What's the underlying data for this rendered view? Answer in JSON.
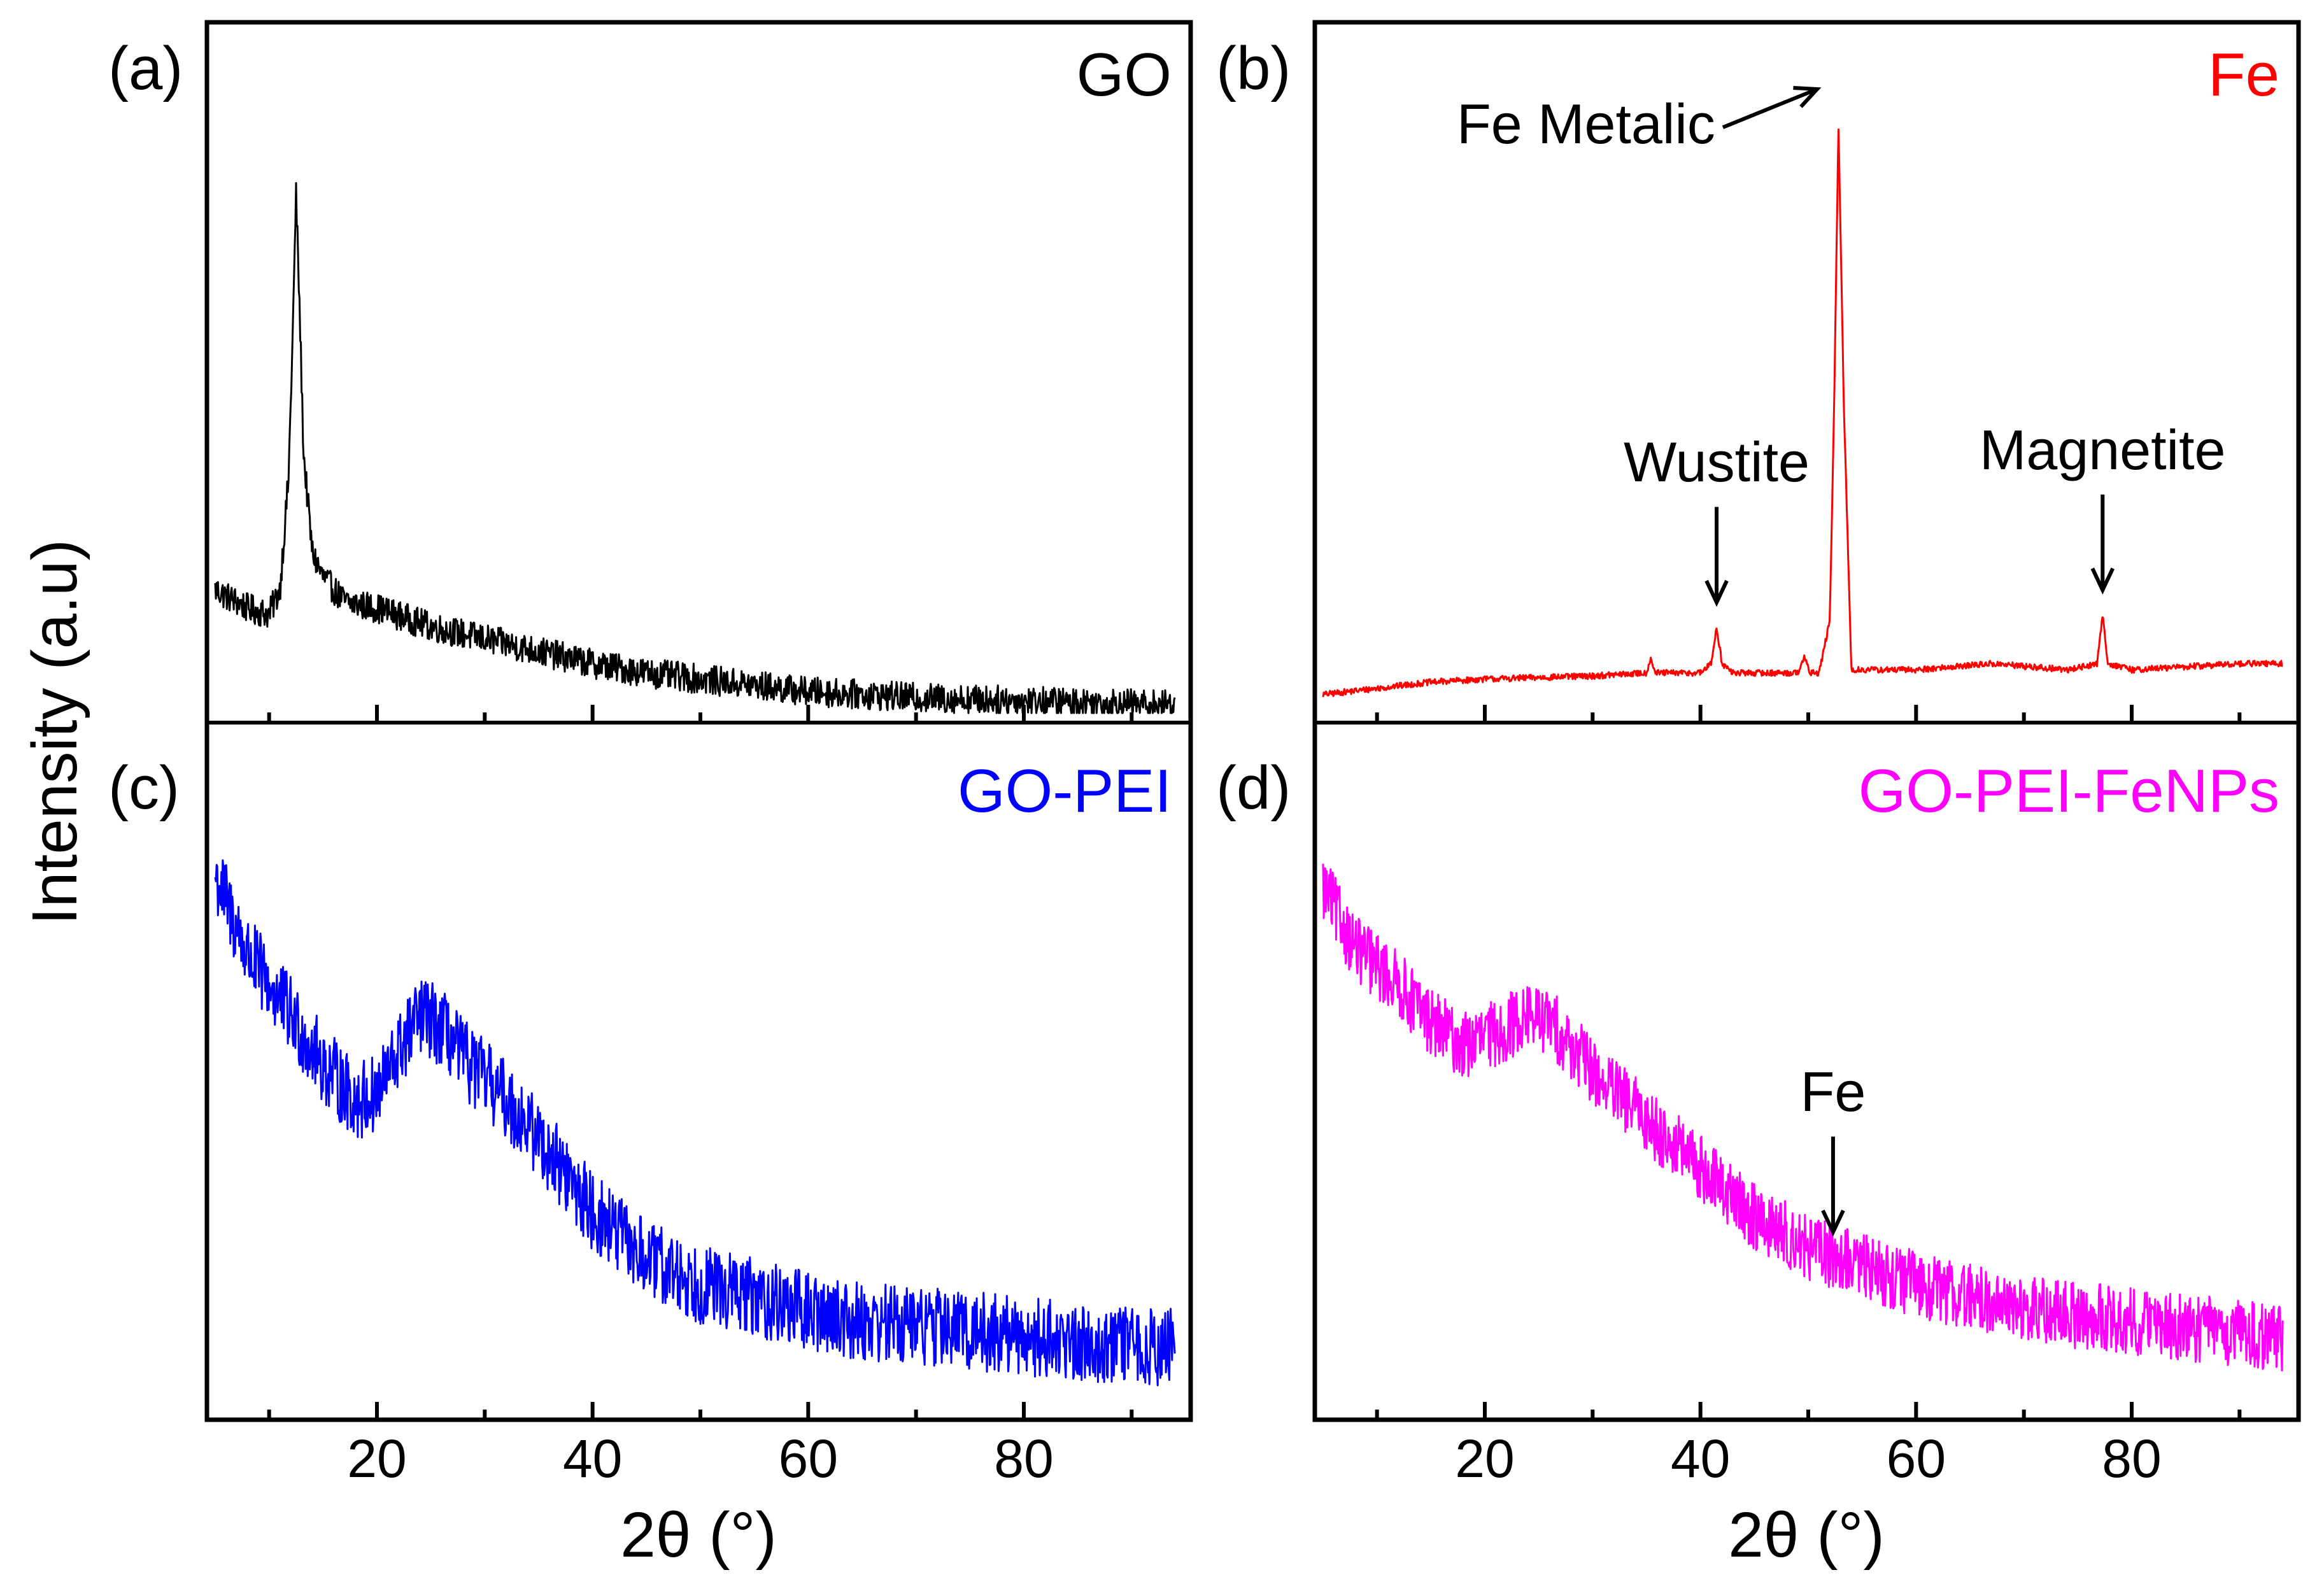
{
  "chart_data": {
    "type": "line",
    "ylabel": "Intensity (a.u)",
    "xlabel": "2θ (°)",
    "xlim": [
      5,
      95
    ],
    "xticks": [
      20,
      40,
      60,
      80
    ],
    "xtick_labels": [
      "20",
      "40",
      "60",
      "80"
    ],
    "ylim": [
      0,
      100
    ],
    "panels": [
      {
        "id": "(a)",
        "sample": "GO",
        "color": "#000000",
        "noise": 2.4,
        "x": [
          5,
          6,
          8,
          10,
          11,
          11.8,
          12.2,
          12.5,
          12.8,
          13.2,
          14,
          15,
          17,
          20,
          25,
          30,
          35,
          40,
          45,
          50,
          55,
          60,
          70,
          80,
          90,
          94
        ],
        "y": [
          20,
          19,
          17,
          16,
          20,
          38,
          62,
          84,
          67,
          42,
          26,
          22,
          18,
          17,
          14,
          12,
          10,
          8,
          6.5,
          5.5,
          4.5,
          3.5,
          2.5,
          2,
          1.5,
          1.3
        ],
        "annotations": []
      },
      {
        "id": "(b)",
        "sample": "Fe",
        "color": "#ff0000",
        "noise": 0.5,
        "x": [
          5,
          10,
          15,
          20,
          30,
          35,
          35.4,
          35.8,
          40,
          41,
          41.5,
          42,
          43,
          49,
          49.6,
          50.2,
          51,
          52,
          52.4,
          52.8,
          53.3,
          54,
          60,
          67,
          74,
          76.8,
          77.3,
          77.8,
          80,
          90,
          94
        ],
        "y": [
          3,
          4,
          5,
          5.5,
          6,
          6.5,
          9,
          6.5,
          6.5,
          8,
          14,
          8,
          6.5,
          6.5,
          9,
          6.5,
          6.5,
          15,
          50,
          95,
          50,
          7,
          7,
          8,
          7,
          8,
          16,
          8,
          7,
          8,
          8
        ],
        "annotations": [
          {
            "text": "Fe Metalic",
            "x": 52.3,
            "type": "diagonal"
          },
          {
            "text": "Wustite",
            "x": 41.5,
            "type": "down"
          },
          {
            "text": "Magnetite",
            "x": 77.3,
            "type": "down"
          }
        ]
      },
      {
        "id": "(c)",
        "sample": "GO-PEI",
        "color": "#0000ff",
        "noise": 6.5,
        "x": [
          5,
          8,
          12,
          15,
          18,
          20,
          22,
          24,
          26,
          28,
          31,
          35,
          40,
          45,
          50,
          55,
          60,
          65,
          70,
          75,
          80,
          85,
          90,
          94
        ],
        "y": [
          86,
          73,
          63,
          55,
          49,
          50,
          57,
          63,
          61,
          56,
          51,
          43,
          31,
          23,
          19,
          17,
          14.5,
          13,
          12.5,
          11.5,
          10.5,
          9.5,
          9,
          8.5
        ],
        "annotations": []
      },
      {
        "id": "(d)",
        "sample": "GO-PEI-FeNPs",
        "color": "#ff00ff",
        "noise": 5.5,
        "x": [
          5,
          8,
          12,
          15,
          18,
          21,
          24,
          26,
          28,
          31,
          35,
          40,
          45,
          50,
          55,
          60,
          65,
          70,
          75,
          80,
          85,
          90,
          94
        ],
        "y": [
          84,
          74,
          68,
          62,
          58,
          60,
          63,
          62,
          58,
          52,
          46,
          38,
          30,
          25,
          22,
          19,
          17,
          15,
          14,
          13,
          12,
          11,
          10
        ],
        "annotations": [
          {
            "text": "Fe",
            "x": 52.3,
            "type": "down"
          }
        ]
      }
    ]
  }
}
